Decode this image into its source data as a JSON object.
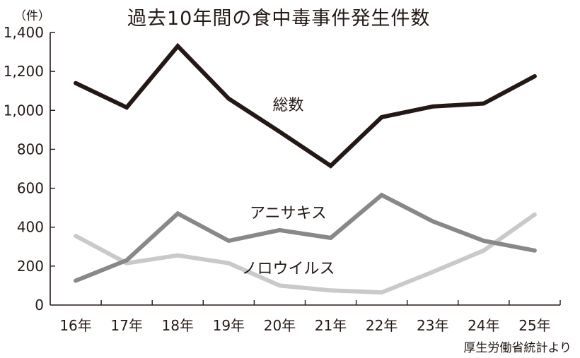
{
  "chart_data": {
    "type": "line",
    "title": "過去10年間の食中毒事件発生件数",
    "unit_label": "（件）",
    "source": "厚生労働省統計より",
    "xlabel": "",
    "ylabel": "（件）",
    "categories": [
      "16年",
      "17年",
      "18年",
      "19年",
      "20年",
      "21年",
      "22年",
      "23年",
      "24年",
      "25年"
    ],
    "y_ticks": [
      0,
      200,
      400,
      600,
      800,
      1000,
      1200,
      1400
    ],
    "y_tick_labels": [
      "0",
      "200",
      "400",
      "600",
      "800",
      "1,000",
      "1,200",
      "1,400"
    ],
    "ylim": [
      0,
      1400
    ],
    "grid": false,
    "legend_position": "inline labels",
    "series": [
      {
        "name": "総数",
        "color": "#231815",
        "values": [
          1140,
          1015,
          1330,
          1060,
          890,
          715,
          965,
          1020,
          1035,
          1175
        ]
      },
      {
        "name": "アニサキス",
        "color": "#888888",
        "values": [
          125,
          230,
          470,
          330,
          385,
          345,
          565,
          430,
          330,
          280
        ]
      },
      {
        "name": "ノロウイルス",
        "color": "#c9c9c9",
        "values": [
          355,
          215,
          255,
          215,
          100,
          75,
          65,
          170,
          280,
          465
        ]
      }
    ],
    "annotations": [
      {
        "text": "総数",
        "x_category": "20年",
        "y": 1030
      },
      {
        "text": "アニサキス",
        "x_category": "20年",
        "y": 475
      },
      {
        "text": "ノロウイルス",
        "x_category": "20年",
        "y": 190
      }
    ]
  }
}
